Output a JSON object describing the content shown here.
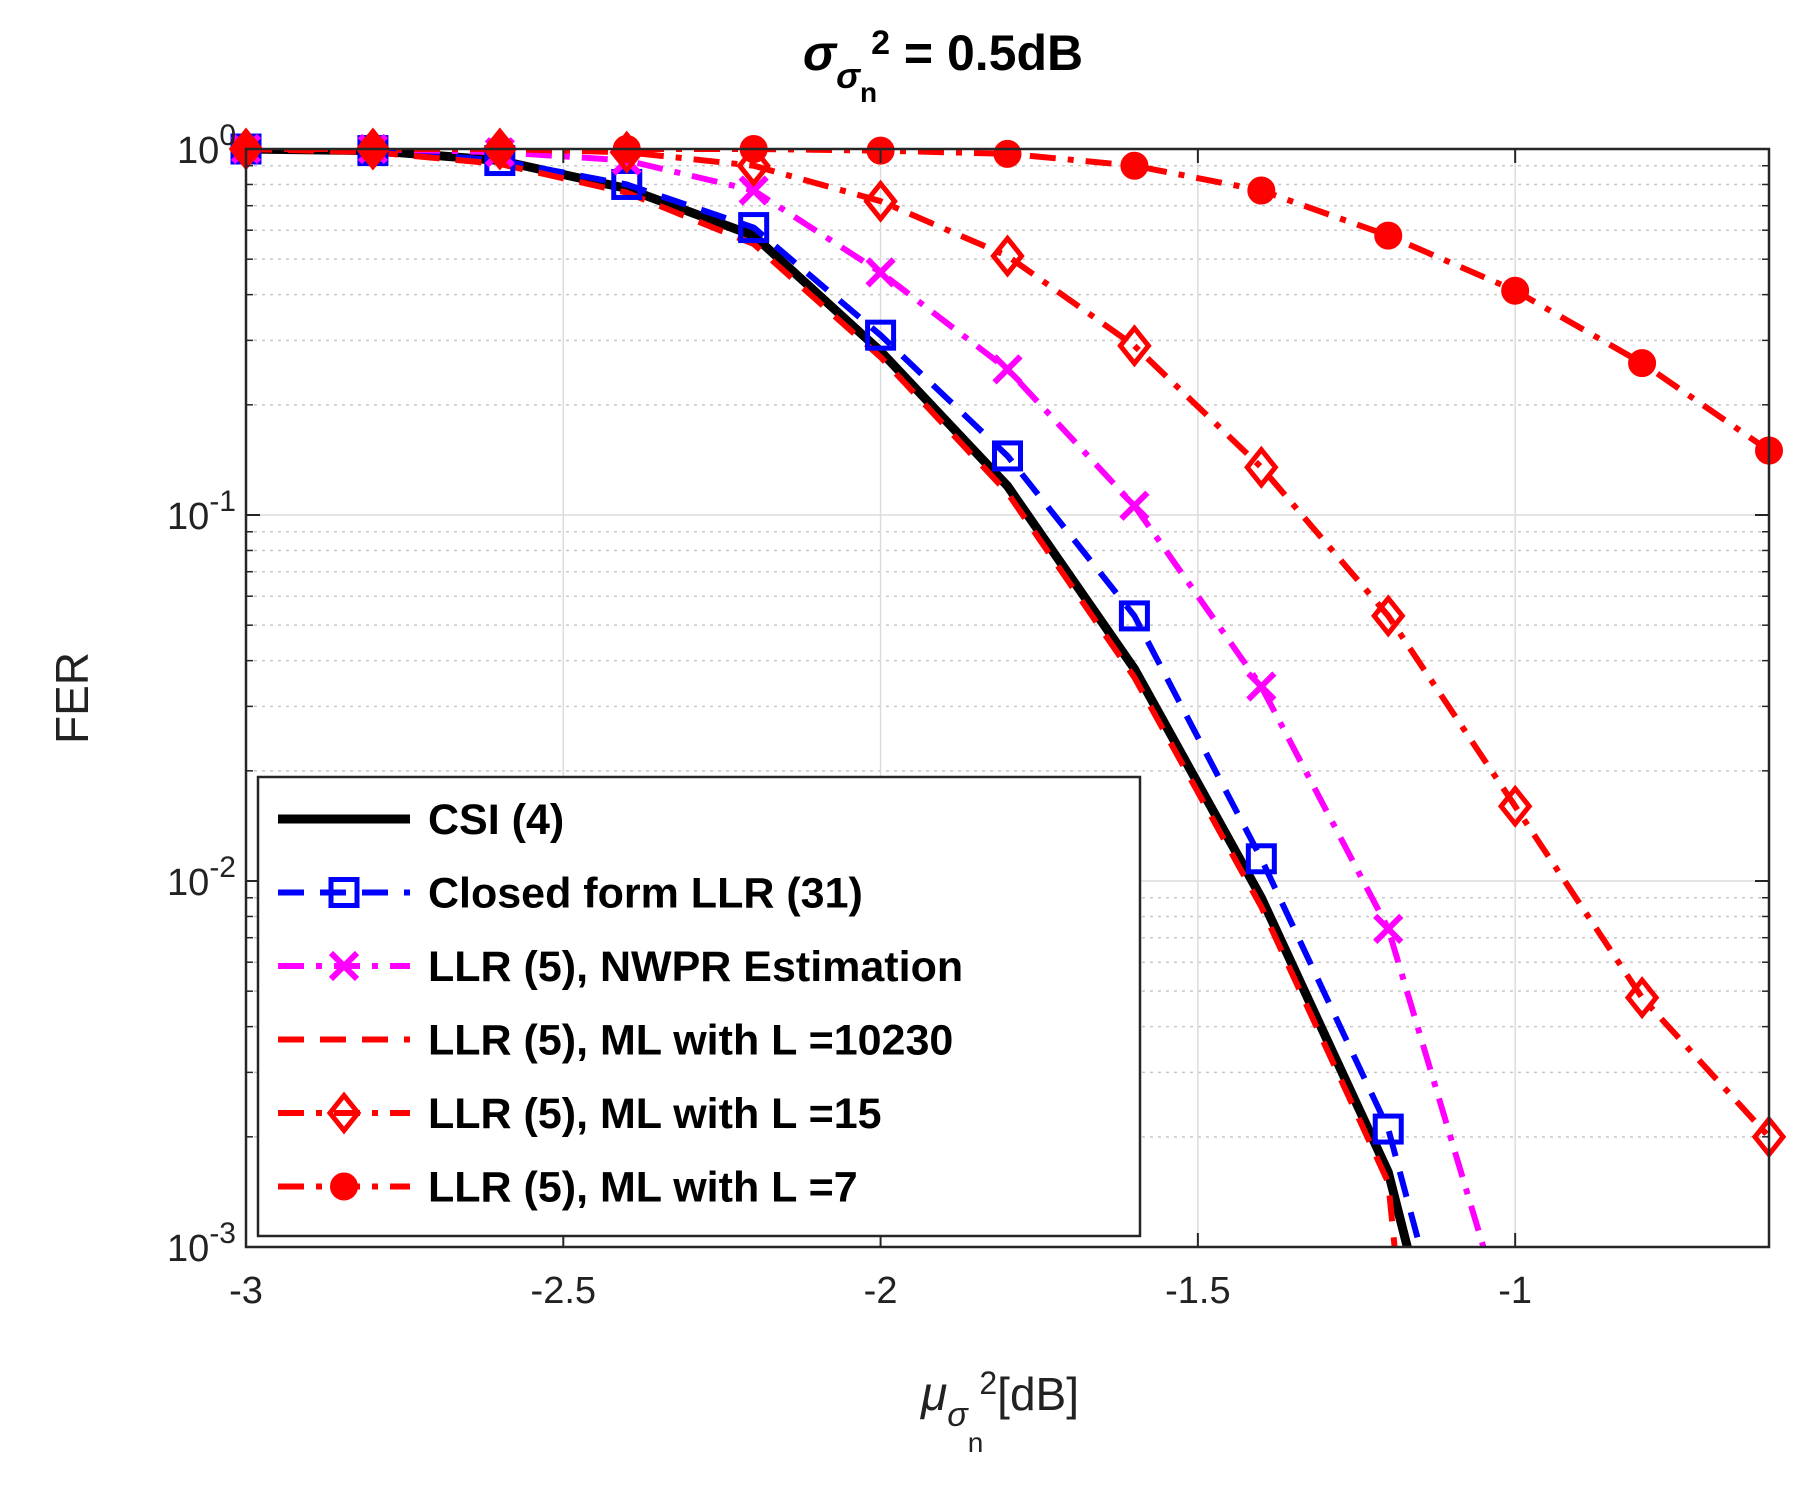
{
  "chart_data": {
    "type": "line",
    "title": {
      "prefix": "σ",
      "sub": "σ",
      "subsub": "n",
      "sup": "2",
      "suffix": " = 0.5dB"
    },
    "xlabel": {
      "main": "μ",
      "sub": "σ",
      "subsub": "n",
      "sup": "2",
      "unit": "[dB]"
    },
    "ylabel": "FER",
    "xlim": [
      -3,
      -0.6
    ],
    "ylim": [
      0.001,
      1
    ],
    "yscale": "log",
    "grid": true,
    "legend_position": "bottom-left",
    "x_ticks": [
      {
        "value": -3,
        "label": "-3"
      },
      {
        "value": -2.5,
        "label": "-2.5"
      },
      {
        "value": -2,
        "label": "-2"
      },
      {
        "value": -1.5,
        "label": "-1.5"
      },
      {
        "value": -1,
        "label": "-1"
      }
    ],
    "y_ticks": [
      {
        "value": 1,
        "base": "10",
        "exp": "0"
      },
      {
        "value": 0.1,
        "base": "10",
        "exp": "-1"
      },
      {
        "value": 0.01,
        "base": "10",
        "exp": "-2"
      },
      {
        "value": 0.001,
        "base": "10",
        "exp": "-3"
      }
    ],
    "series": [
      {
        "name": "CSI (4)",
        "color": "#000000",
        "dash": "solid",
        "marker": "none",
        "x": [
          -3,
          -2.8,
          -2.6,
          -2.4,
          -2.2,
          -2.0,
          -1.8,
          -1.6,
          -1.4,
          -1.2,
          -1.17
        ],
        "y": [
          1.0,
          0.99,
          0.93,
          0.78,
          0.58,
          0.28,
          0.12,
          0.038,
          0.009,
          0.0016,
          0.001
        ]
      },
      {
        "name": "Closed form LLR (31)",
        "color": "#0000ff",
        "dash": "dash",
        "marker": "square",
        "x": [
          -3,
          -2.8,
          -2.6,
          -2.4,
          -2.2,
          -2.0,
          -1.8,
          -1.6,
          -1.4,
          -1.2,
          -1.15
        ],
        "y": [
          1.0,
          0.99,
          0.93,
          0.8,
          0.61,
          0.31,
          0.145,
          0.053,
          0.0115,
          0.0021,
          0.001
        ]
      },
      {
        "name": "LLR (5), NWPR Estimation",
        "color": "#ff00ff",
        "dash": "dashdot",
        "marker": "x",
        "x": [
          -3,
          -2.8,
          -2.6,
          -2.4,
          -2.2,
          -2.0,
          -1.8,
          -1.6,
          -1.4,
          -1.2,
          -1.05
        ],
        "y": [
          1.0,
          1.0,
          0.98,
          0.93,
          0.77,
          0.46,
          0.25,
          0.106,
          0.034,
          0.0074,
          0.001
        ]
      },
      {
        "name": "LLR (5), ML with L =10230",
        "color": "#ff0000",
        "dash": "dash",
        "marker": "none",
        "x": [
          -3,
          -2.8,
          -2.6,
          -2.4,
          -2.2,
          -2.0,
          -1.8,
          -1.6,
          -1.4,
          -1.2,
          -1.19
        ],
        "y": [
          1.0,
          0.98,
          0.91,
          0.76,
          0.55,
          0.27,
          0.115,
          0.036,
          0.0085,
          0.0015,
          0.001
        ]
      },
      {
        "name": "LLR (5), ML with L =15",
        "color": "#ff0000",
        "dash": "dashdot",
        "marker": "diamond",
        "x": [
          -3,
          -2.8,
          -2.6,
          -2.4,
          -2.2,
          -2.0,
          -1.8,
          -1.6,
          -1.4,
          -1.2,
          -1.0,
          -0.8,
          -0.6
        ],
        "y": [
          1.0,
          1.0,
          1.0,
          0.98,
          0.9,
          0.72,
          0.51,
          0.29,
          0.135,
          0.053,
          0.016,
          0.0048,
          0.002
        ]
      },
      {
        "name": "LLR (5), ML with L =7",
        "color": "#ff0000",
        "dash": "dashdot",
        "marker": "circle",
        "x": [
          -3,
          -2.8,
          -2.6,
          -2.4,
          -2.2,
          -2.0,
          -1.8,
          -1.6,
          -1.4,
          -1.2,
          -1.0,
          -0.8,
          -0.6
        ],
        "y": [
          1.0,
          1.0,
          1.0,
          1.0,
          1.0,
          0.99,
          0.97,
          0.9,
          0.77,
          0.58,
          0.41,
          0.26,
          0.15
        ]
      }
    ]
  }
}
